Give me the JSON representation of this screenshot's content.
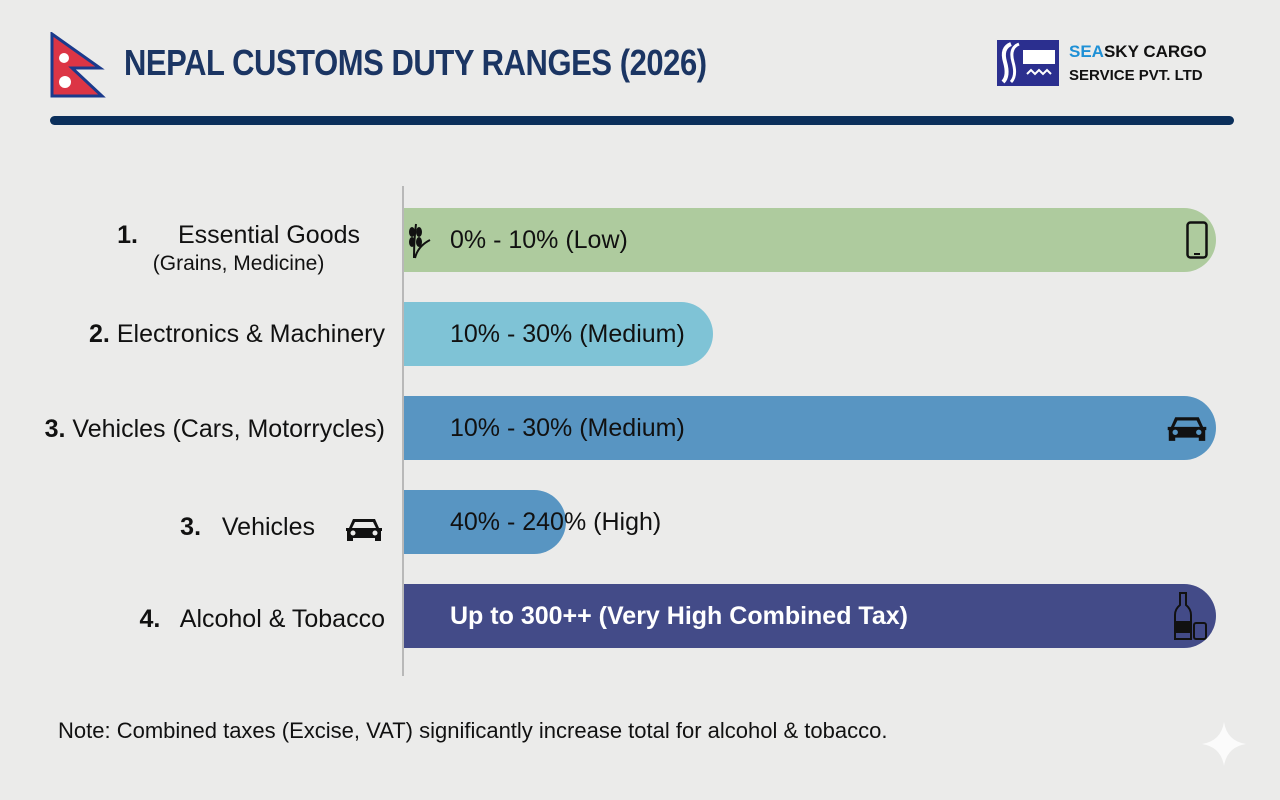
{
  "header": {
    "title": "NEPAL CUSTOMS DUTY RANGES (2026)",
    "brand_line1_highlight": "SEA",
    "brand_line1_rest": "SKY CARGO",
    "brand_line2": "SERVICE PVT. LTD"
  },
  "colors": {
    "title": "#1b3563",
    "rule": "#0b2f5b",
    "brand_accent": "#1e90d6",
    "flag_red": "#dc3545",
    "flag_border": "#1b3a8c"
  },
  "chart_data": {
    "type": "bar",
    "orientation": "horizontal",
    "categories": [
      {
        "num": "1.",
        "label": "Essential Goods",
        "sub": "(Grains, Medicine)"
      },
      {
        "num": "2.",
        "label": "Electronics & Machinery"
      },
      {
        "num": "3.",
        "label": "Vehicles (Cars, Motorrycles)"
      },
      {
        "num": "3.",
        "label": "Vehicles",
        "icon": "car-icon"
      },
      {
        "num": "4.",
        "label": "Alcohol & Tobacco"
      }
    ],
    "bars": [
      {
        "label": "0% - 10% (Low)",
        "fill": 1.0,
        "color": "#aecb9e",
        "text_color": "#111111",
        "left_icon": "wheat-icon",
        "right_icon": "smartphone-icon"
      },
      {
        "label": "10% - 30% (Medium)",
        "fill": 0.38,
        "color": "#7fc3d6",
        "text_color": "#111111"
      },
      {
        "label": "10% - 30% (Medium)",
        "fill": 1.0,
        "color": "#5895c2",
        "text_color": "#111111",
        "right_icon": "car-icon"
      },
      {
        "label": "40% - 240% (High)",
        "fill": 0.2,
        "color": "#5895c2",
        "text_color": "#111111"
      },
      {
        "label": "Up to 300++ (Very High Combined Tax)",
        "fill": 1.0,
        "color": "#434b88",
        "text_color": "#ffffff",
        "bold": true,
        "right_icon": "bottle-glass-icon"
      }
    ],
    "axis_labels": false,
    "grid": false
  },
  "note": "Note: Combined taxes (Excise, VAT) significantly increase total for alcohol & tobacco."
}
